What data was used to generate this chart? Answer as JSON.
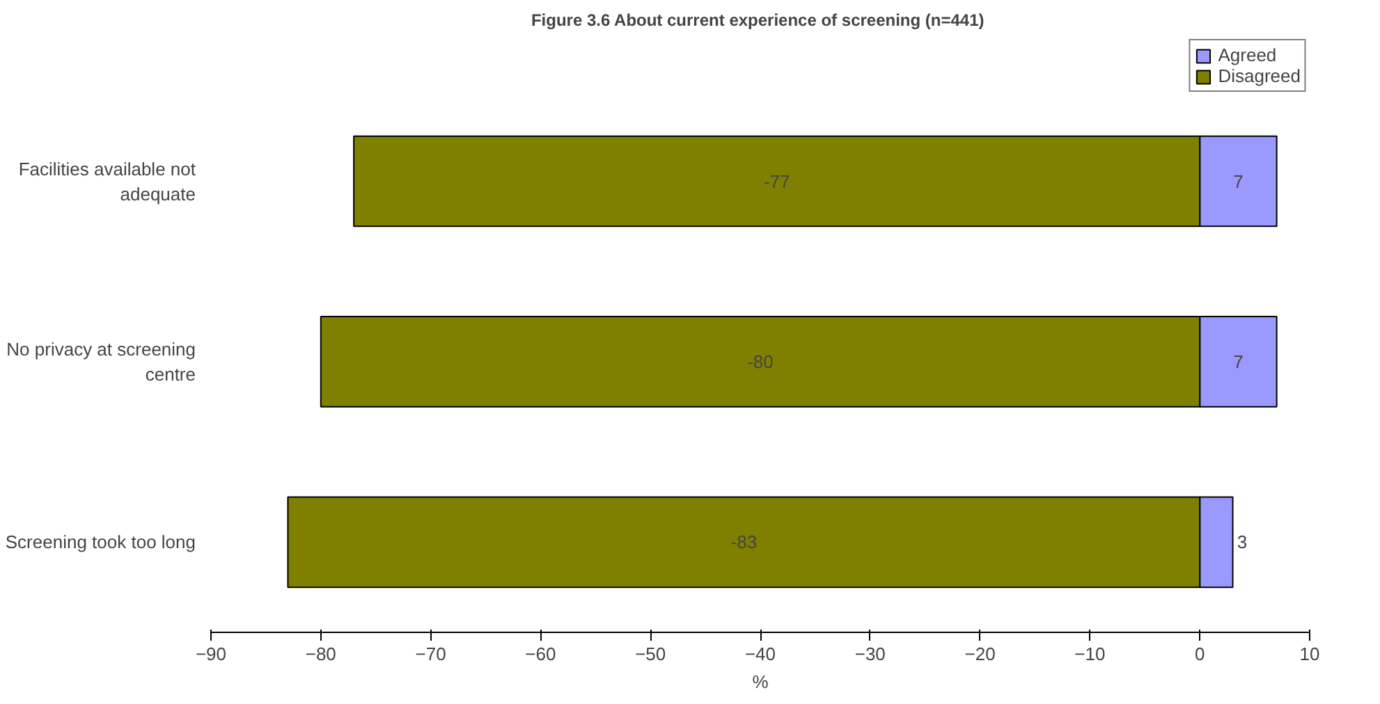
{
  "chart_data": {
    "type": "bar",
    "orientation": "horizontal",
    "stacked": true,
    "title": "Figure 3.6  About current experience of screening (n=441)",
    "xlabel": "%",
    "categories": [
      "Facilities available not adequate",
      "No privacy at screening centre",
      "Screening took too long"
    ],
    "series": [
      {
        "name": "Agreed",
        "color": "#9999ff",
        "values": [
          7,
          7,
          3
        ]
      },
      {
        "name": "Disagreed",
        "color": "#808000",
        "values": [
          -77,
          -80,
          -83
        ]
      }
    ],
    "xlim": [
      -90,
      10
    ],
    "xticks": [
      -90,
      -80,
      -70,
      -60,
      -50,
      -40,
      -30,
      -20,
      -10,
      0,
      10
    ],
    "grid": false,
    "legend": "top right",
    "data_labels": true
  }
}
